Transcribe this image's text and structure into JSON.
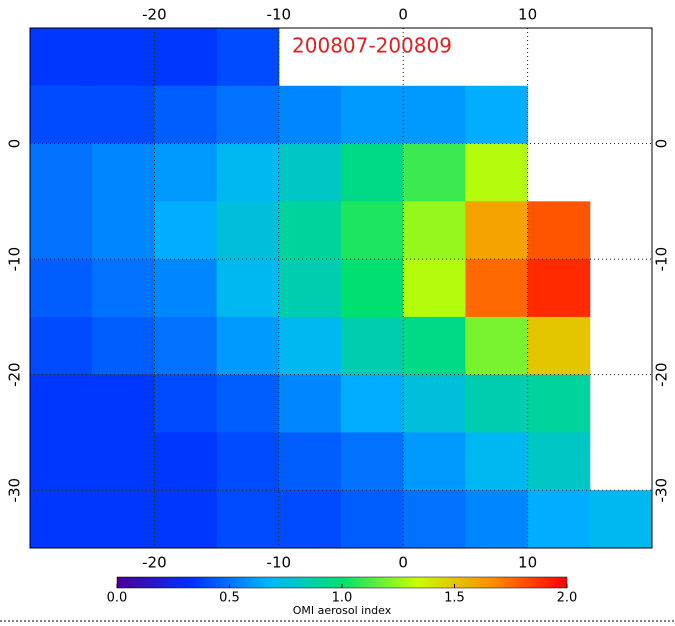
{
  "chart_data": {
    "type": "heatmap",
    "title": "200807-200809",
    "xlim": [
      -30,
      20
    ],
    "ylim": [
      -35,
      10
    ],
    "xticks": [
      -20,
      -10,
      0,
      10
    ],
    "yticks": [
      0,
      -10,
      -20,
      -30
    ],
    "grid": true,
    "xbins": [
      -30,
      -25,
      -20,
      -15,
      -10,
      -5,
      0,
      5,
      10,
      15,
      20
    ],
    "ybins": [
      10,
      5,
      0,
      -5,
      -10,
      -15,
      -20,
      -25,
      -30,
      -35
    ],
    "values": [
      [
        0.35,
        0.35,
        0.35,
        0.4,
        null,
        null,
        null,
        null,
        null,
        null
      ],
      [
        0.4,
        0.4,
        0.45,
        0.5,
        0.55,
        0.6,
        0.6,
        0.65,
        null,
        null
      ],
      [
        0.5,
        0.55,
        0.6,
        0.7,
        0.8,
        0.95,
        1.1,
        1.3,
        null,
        null
      ],
      [
        0.5,
        0.55,
        0.65,
        0.75,
        0.9,
        1.05,
        1.25,
        1.6,
        1.8,
        null
      ],
      [
        0.45,
        0.5,
        0.55,
        0.7,
        0.85,
        1.0,
        1.3,
        1.75,
        1.9,
        null
      ],
      [
        0.4,
        0.45,
        0.5,
        0.6,
        0.7,
        0.85,
        0.95,
        1.2,
        1.5,
        null
      ],
      [
        0.35,
        0.35,
        0.4,
        0.45,
        0.55,
        0.65,
        0.75,
        0.85,
        0.9,
        null
      ],
      [
        0.35,
        0.35,
        0.35,
        0.4,
        0.45,
        0.5,
        0.6,
        0.7,
        0.8,
        null
      ],
      [
        0.35,
        0.35,
        0.35,
        0.4,
        0.4,
        0.45,
        0.5,
        0.55,
        0.65,
        0.7
      ]
    ],
    "colormap": [
      "#4b0096",
      "#0030ff",
      "#00b4ff",
      "#00e070",
      "#c8ff00",
      "#ff8c00",
      "#ff0000"
    ],
    "clim": [
      0,
      2
    ],
    "cticks": [
      {
        "value": 0,
        "label": "0.0"
      },
      {
        "value": 0.5,
        "label": "0.5"
      },
      {
        "value": 1,
        "label": "1.0"
      },
      {
        "value": 1.5,
        "label": "1.5"
      },
      {
        "value": 2,
        "label": "2.0"
      }
    ],
    "colorbar_label": "OMI aerosol index"
  }
}
